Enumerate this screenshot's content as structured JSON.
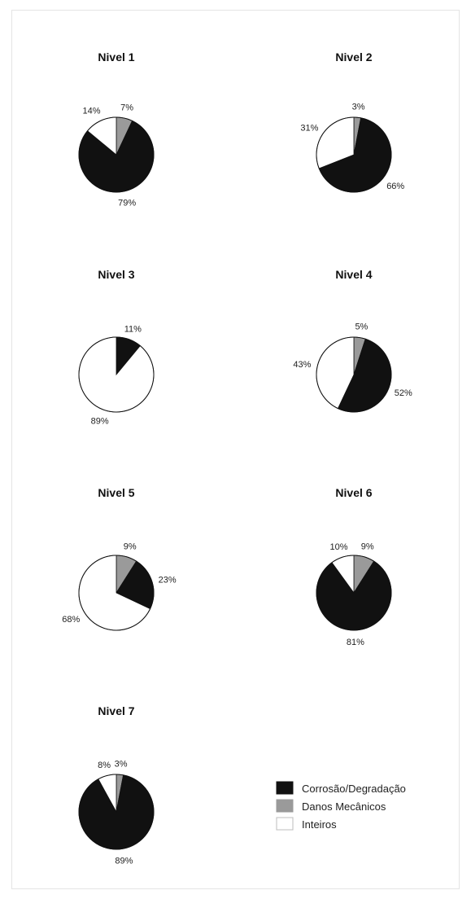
{
  "chart_data": [
    {
      "type": "pie",
      "title": "Nivel 1",
      "categories": [
        "Corrosão/Degradação",
        "Danos Mecânicos",
        "Inteiros"
      ],
      "values": [
        79,
        7,
        14
      ],
      "labels": [
        "79%",
        "7%",
        "14%"
      ]
    },
    {
      "type": "pie",
      "title": "Nivel 2",
      "categories": [
        "Corrosão/Degradação",
        "Danos Mecânicos",
        "Inteiros"
      ],
      "values": [
        66,
        3,
        31
      ],
      "labels": [
        "66%",
        "3%",
        "31%"
      ]
    },
    {
      "type": "pie",
      "title": "Nivel 3",
      "categories": [
        "Corrosão/Degradação",
        "Danos Mecânicos",
        "Inteiros"
      ],
      "values": [
        11,
        0,
        89
      ],
      "labels": [
        "11%",
        "",
        "89%"
      ]
    },
    {
      "type": "pie",
      "title": "Nivel 4",
      "categories": [
        "Corrosão/Degradação",
        "Danos Mecânicos",
        "Inteiros"
      ],
      "values": [
        52,
        5,
        43
      ],
      "labels": [
        "52%",
        "5%",
        "43%"
      ]
    },
    {
      "type": "pie",
      "title": "Nivel 5",
      "categories": [
        "Corrosão/Degradação",
        "Danos Mecânicos",
        "Inteiros"
      ],
      "values": [
        23,
        9,
        68
      ],
      "labels": [
        "23%",
        "9%",
        "68%"
      ]
    },
    {
      "type": "pie",
      "title": "Nivel 6",
      "categories": [
        "Corrosão/Degradação",
        "Danos Mecânicos",
        "Inteiros"
      ],
      "values": [
        81,
        9,
        10
      ],
      "labels": [
        "81%",
        "9%",
        "10%"
      ]
    },
    {
      "type": "pie",
      "title": "Nivel 7",
      "categories": [
        "Corrosão/Degradação",
        "Danos Mecânicos",
        "Inteiros"
      ],
      "values": [
        89,
        3,
        8
      ],
      "labels": [
        "89%",
        "3%",
        "8%"
      ]
    }
  ],
  "legend": {
    "placement": "bottom-right",
    "items": [
      {
        "label": "Corrosão/Degradação",
        "color": "#111111"
      },
      {
        "label": "Danos Mecânicos",
        "color": "#9a9a9a"
      },
      {
        "label": "Inteiros",
        "color": "#ffffff"
      }
    ]
  },
  "colors": [
    "#111111",
    "#9a9a9a",
    "#ffffff"
  ]
}
